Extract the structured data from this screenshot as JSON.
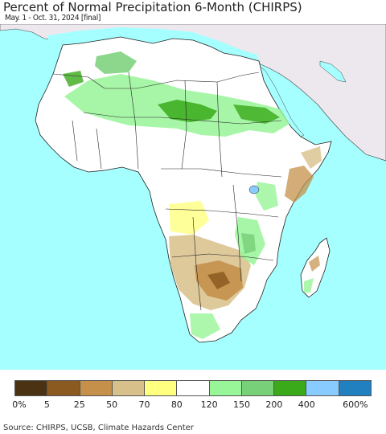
{
  "title": "Percent of Normal Precipitation 6-Month (CHIRPS)",
  "subtitle": "May. 1 - Oct. 31, 2024 [final]",
  "source": "Source: CHIRPS, UCSB, Climate Hazards Center",
  "colors": {
    "ocean": "#a5ffff",
    "land_normal": "#ffffff",
    "outside_land": "#ece8ee",
    "border": "#000000"
  },
  "legend": {
    "colors": [
      "#4a3213",
      "#8b5a20",
      "#c4904a",
      "#d8c08a",
      "#ffff80",
      "#ffffff",
      "#98f598",
      "#78d078",
      "#3aaa1a",
      "#88ccff",
      "#2080c0"
    ],
    "ticks": [
      "0%",
      "5",
      "25",
      "50",
      "70",
      "80",
      "120",
      "150",
      "200",
      "400",
      "600%"
    ]
  }
}
